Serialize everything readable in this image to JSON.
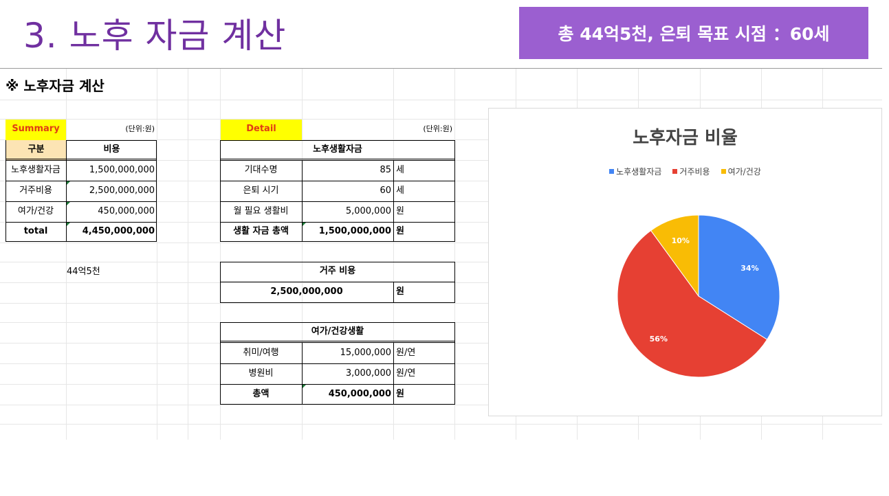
{
  "slide": {
    "title": "3. 노후 자금 계산",
    "badge": "총 44억5천, 은퇴 목표 시점 ：60세"
  },
  "sheet": {
    "heading": "※ 노후자금 계산",
    "summary": {
      "label": "Summary",
      "unit": "(단위:원)",
      "headers": [
        "구분",
        "비용"
      ],
      "rows": [
        {
          "name": "노후생활자금",
          "value": "1,500,000,000"
        },
        {
          "name": "거주비용",
          "value": "2,500,000,000"
        },
        {
          "name": "여가/건강",
          "value": "450,000,000"
        }
      ],
      "total": {
        "name": "total",
        "value": "4,450,000,000"
      },
      "note": "44억5천"
    },
    "detail": {
      "label": "Detail",
      "unit": "(단위:원)",
      "living": {
        "title": "노후생활자금",
        "rows": [
          {
            "name": "기대수명",
            "value": "85",
            "unit": "세"
          },
          {
            "name": "은퇴 시기",
            "value": "60",
            "unit": "세"
          },
          {
            "name": "월 필요 생활비",
            "value": "5,000,000",
            "unit": "원"
          }
        ],
        "total": {
          "name": "생활 자금 총액",
          "value": "1,500,000,000",
          "unit": "원"
        }
      },
      "housing": {
        "title": "거주 비용",
        "value": "2,500,000,000",
        "unit": "원"
      },
      "leisure": {
        "title": "여가/건강생활",
        "rows": [
          {
            "name": "취미/여행",
            "value": "15,000,000",
            "unit": "원/연"
          },
          {
            "name": "병원비",
            "value": "3,000,000",
            "unit": "원/연"
          }
        ],
        "total": {
          "name": "총액",
          "value": "450,000,000",
          "unit": "원"
        }
      }
    }
  },
  "chart_data": {
    "type": "pie",
    "title": "노후자금 비율",
    "legend_position": "top",
    "categories": [
      "노후생활자금",
      "거주비용",
      "여가/건강"
    ],
    "values": [
      34,
      56,
      10
    ],
    "labels": [
      "34%",
      "56%",
      "10%"
    ],
    "colors": [
      "#4285f4",
      "#e64033",
      "#f9bc05"
    ]
  }
}
